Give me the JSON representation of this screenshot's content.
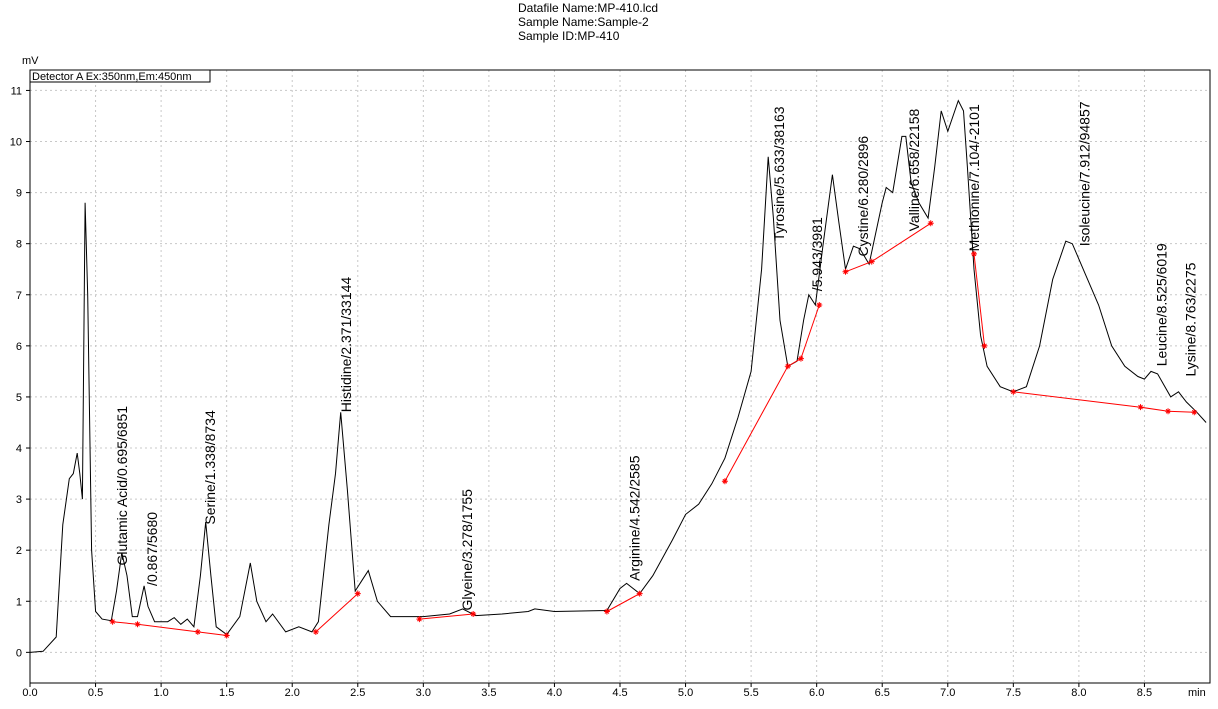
{
  "chart_data": {
    "type": "line",
    "header": [
      "Datafile Name:MP-410.lcd",
      "Sample Name:Sample-2",
      "Sample ID:MP-410"
    ],
    "ylabel": "mV",
    "xlabel": "min",
    "legend": "Detector A Ex:350nm,Em:450nm",
    "xlim": [
      0,
      9.0
    ],
    "ylim": [
      -0.6,
      11.4
    ],
    "xticks": [
      {
        "value": 0,
        "label": "0.0"
      },
      0.5,
      {
        "value": 1,
        "label": "1.0"
      },
      1.5,
      {
        "value": 2,
        "label": "2.0"
      },
      2.5,
      {
        "value": 3,
        "label": "3.0"
      },
      3.5,
      {
        "value": 4,
        "label": "4.0"
      },
      4.5,
      {
        "value": 5,
        "label": "5.0"
      },
      5.5,
      {
        "value": 6,
        "label": "6.0"
      },
      6.5,
      {
        "value": 7,
        "label": "7.0"
      },
      7.5,
      {
        "value": 8,
        "label": "8.0"
      },
      8.5
    ],
    "yticks": [
      0,
      1,
      2,
      3,
      4,
      5,
      6,
      7,
      8,
      9,
      10,
      11
    ],
    "grid": true,
    "series": [
      {
        "color": "#000000",
        "x": [
          0,
          0.1,
          0.2,
          0.25,
          0.3,
          0.33,
          0.36,
          0.38,
          0.4,
          0.42,
          0.44,
          0.47,
          0.5,
          0.55,
          0.62,
          0.66,
          0.7,
          0.74,
          0.78,
          0.82,
          0.87,
          0.9,
          0.95,
          1.05,
          1.1,
          1.15,
          1.2,
          1.25,
          1.3,
          1.34,
          1.38,
          1.42,
          1.5,
          1.6,
          1.68,
          1.73,
          1.8,
          1.85,
          1.95,
          2.05,
          2.15,
          2.2,
          2.28,
          2.33,
          2.37,
          2.42,
          2.48,
          2.53,
          2.58,
          2.65,
          2.75,
          3.0,
          3.2,
          3.3,
          3.4,
          3.6,
          3.8,
          3.85,
          4.0,
          4.4,
          4.5,
          4.55,
          4.65,
          4.75,
          4.9,
          5.0,
          5.1,
          5.2,
          5.3,
          5.4,
          5.5,
          5.58,
          5.63,
          5.67,
          5.72,
          5.78,
          5.85,
          5.9,
          5.94,
          5.99,
          6.05,
          6.12,
          6.17,
          6.22,
          6.28,
          6.33,
          6.4,
          6.5,
          6.53,
          6.58,
          6.65,
          6.68,
          6.72,
          6.78,
          6.85,
          6.9,
          6.95,
          7.0,
          7.08,
          7.12,
          7.15,
          7.2,
          7.25,
          7.3,
          7.4,
          7.5,
          7.6,
          7.7,
          7.8,
          7.9,
          7.95,
          8.05,
          8.15,
          8.25,
          8.35,
          8.45,
          8.5,
          8.55,
          8.6,
          8.7,
          8.76,
          8.82,
          8.9,
          8.97
        ],
        "y": [
          0,
          0.02,
          0.3,
          2.5,
          3.4,
          3.5,
          3.9,
          3.5,
          3.0,
          8.8,
          7,
          2,
          0.8,
          0.65,
          0.62,
          1.2,
          1.95,
          1.5,
          0.7,
          0.7,
          1.3,
          0.9,
          0.6,
          0.6,
          0.68,
          0.55,
          0.65,
          0.5,
          1.5,
          2.55,
          1.5,
          0.5,
          0.35,
          0.7,
          1.75,
          1.0,
          0.6,
          0.75,
          0.4,
          0.5,
          0.4,
          0.6,
          2.5,
          3.5,
          4.7,
          3.2,
          1.2,
          1.4,
          1.6,
          1.0,
          0.7,
          0.7,
          0.75,
          0.85,
          0.72,
          0.75,
          0.8,
          0.85,
          0.8,
          0.82,
          1.25,
          1.35,
          1.15,
          1.5,
          2.2,
          2.7,
          2.9,
          3.3,
          3.8,
          4.6,
          5.5,
          7.5,
          9.7,
          8.5,
          6.5,
          5.6,
          5.7,
          6.5,
          7.0,
          6.8,
          8.0,
          9.35,
          8.4,
          7.5,
          7.95,
          7.9,
          7.6,
          8.8,
          9.1,
          9.0,
          10.1,
          10.1,
          9.2,
          8.8,
          8.5,
          9.5,
          10.6,
          10.2,
          10.8,
          10.6,
          9.5,
          7.5,
          6.2,
          5.6,
          5.2,
          5.1,
          5.2,
          6.0,
          7.3,
          8.05,
          8.0,
          7.4,
          6.8,
          6.0,
          5.6,
          5.4,
          5.35,
          5.5,
          5.45,
          5.0,
          5.1,
          4.9,
          4.7,
          4.5
        ]
      }
    ],
    "baselines": [
      {
        "color": "#ff0000",
        "x": [
          0.63,
          0.82,
          1.28,
          1.5
        ],
        "y": [
          0.6,
          0.55,
          0.4,
          0.33
        ]
      },
      {
        "color": "#ff0000",
        "x": [
          2.18,
          2.5
        ],
        "y": [
          0.4,
          1.15
        ]
      },
      {
        "color": "#ff0000",
        "x": [
          2.97,
          3.38
        ],
        "y": [
          0.65,
          0.75
        ]
      },
      {
        "color": "#ff0000",
        "x": [
          4.4,
          4.65
        ],
        "y": [
          0.8,
          1.15
        ]
      },
      {
        "color": "#ff0000",
        "x": [
          5.3,
          5.78,
          5.88,
          6.02
        ],
        "y": [
          3.35,
          5.6,
          5.75,
          6.8
        ]
      },
      {
        "color": "#ff0000",
        "x": [
          6.22,
          6.42,
          6.87
        ],
        "y": [
          7.45,
          7.65,
          8.4
        ]
      },
      {
        "color": "#ff0000",
        "x": [
          7.2,
          7.28
        ],
        "y": [
          7.8,
          6.0
        ]
      },
      {
        "color": "#ff0000",
        "x": [
          7.5,
          8.47,
          8.68,
          8.88
        ],
        "y": [
          5.1,
          4.8,
          4.72,
          4.7
        ]
      }
    ],
    "annotations": [
      {
        "text": "Glutamic Acid/0.695/6851",
        "x": 0.74,
        "y": 1.7
      },
      {
        "text": "/0.867/5680",
        "x": 0.97,
        "y": 1.3
      },
      {
        "text": "Serine/1.338/8734",
        "x": 1.41,
        "y": 2.5
      },
      {
        "text": "Histidine/2.371/33144",
        "x": 2.45,
        "y": 4.7
      },
      {
        "text": "Glyeine/3.278/1755",
        "x": 3.37,
        "y": 0.82
      },
      {
        "text": "Arginine/4.542/2585",
        "x": 4.65,
        "y": 1.4
      },
      {
        "text": "Tyrosine/5.633/38163",
        "x": 5.75,
        "y": 8.05
      },
      {
        "text": "/5.943/3981",
        "x": 6.04,
        "y": 7.07
      },
      {
        "text": "Cystine/6.280/2896",
        "x": 6.39,
        "y": 7.75
      },
      {
        "text": "Valline/6.658/22158",
        "x": 6.78,
        "y": 8.24
      },
      {
        "text": "Methionine/7.104/-2101",
        "x": 7.24,
        "y": 7.85
      },
      {
        "text": "Isoleucine/7.912/94857",
        "x": 8.08,
        "y": 7.95
      },
      {
        "text": "Leucine/8.525/6019",
        "x": 8.67,
        "y": 5.6
      },
      {
        "text": "Lysine/8.763/2275",
        "x": 8.89,
        "y": 5.4
      }
    ]
  }
}
